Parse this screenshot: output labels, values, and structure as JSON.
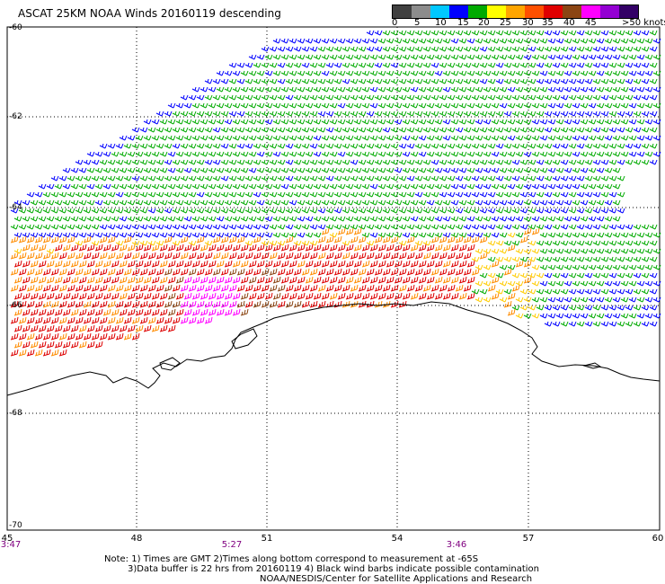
{
  "title": "ASCAT 25KM NOAA Winds 20160119 descending",
  "legend": {
    "colors": [
      "#404040",
      "#8c8c8c",
      "#00c8ff",
      "#0000ff",
      "#00aa00",
      "#ffff00",
      "#ffa500",
      "#ff5000",
      "#e00000",
      "#8b4513",
      "#ff00ff",
      "#9400d3",
      "#330066"
    ],
    "labels": [
      "0",
      "5",
      "10",
      "15",
      "20",
      "25",
      "30",
      "35",
      "40",
      "45",
      ">50 knots"
    ]
  },
  "axes": {
    "lat_labels": [
      "-60",
      "-62",
      "-64",
      "-66",
      "-68",
      "-70"
    ],
    "lon_labels": [
      "45",
      "48",
      "51",
      "54",
      "57",
      "60"
    ],
    "pass_times": [
      "3:47",
      "5:27",
      "3:46"
    ]
  },
  "notes": [
    "Note: 1) Times are GMT 2)Times along bottom correspond to measurement at -65S",
    "3)Data buffer is 22 hrs from 20160119 4) Black wind barbs indicate possible contamination",
    "NOAA/NESDIS/Center for Satellite Applications and Research"
  ],
  "map": {
    "lat_range": [
      -70,
      -60
    ],
    "lon_range": [
      45,
      60
    ],
    "grid": "dotted",
    "wind_speed_colors": {
      "blue": "#0000ff",
      "green": "#00aa00",
      "yellow": "#ffcc00",
      "orange": "#ff8c00",
      "red": "#dd0000",
      "brown": "#8b4513",
      "magenta": "#ff00ff"
    }
  }
}
